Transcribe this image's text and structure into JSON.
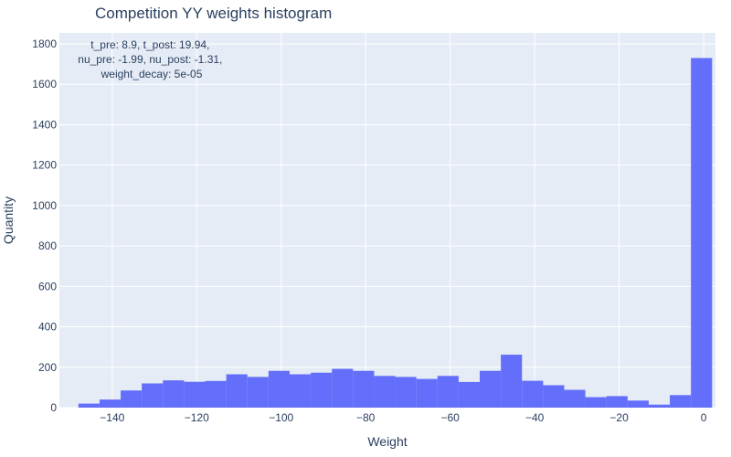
{
  "chart_data": {
    "type": "bar",
    "title": "Competition YY weights histogram",
    "xlabel": "Weight",
    "ylabel": "Quantity",
    "xlim": [
      -152.5,
      2.8
    ],
    "ylim": [
      0,
      1800
    ],
    "bar_color": "#636efa",
    "plot_bg": "#e5ecf6",
    "grid": true,
    "x_ticks": [
      -140,
      -120,
      -100,
      -80,
      -60,
      -40,
      -20,
      0
    ],
    "x_tick_labels": [
      "−140",
      "−120",
      "−100",
      "−80",
      "−60",
      "−40",
      "−20",
      "0"
    ],
    "y_ticks": [
      0,
      200,
      400,
      600,
      800,
      1000,
      1200,
      1400,
      1600,
      1800
    ],
    "y_tick_labels": [
      "0",
      "200",
      "400",
      "600",
      "800",
      "1000",
      "1200",
      "1400",
      "1600",
      "1800"
    ],
    "bin_width": 5,
    "bins": [
      {
        "x0": -148,
        "value": 20
      },
      {
        "x0": -143,
        "value": 40
      },
      {
        "x0": -138,
        "value": 85
      },
      {
        "x0": -133,
        "value": 120
      },
      {
        "x0": -128,
        "value": 135
      },
      {
        "x0": -123,
        "value": 128
      },
      {
        "x0": -118,
        "value": 132
      },
      {
        "x0": -113,
        "value": 165
      },
      {
        "x0": -108,
        "value": 152
      },
      {
        "x0": -103,
        "value": 182
      },
      {
        "x0": -98,
        "value": 165
      },
      {
        "x0": -93,
        "value": 173
      },
      {
        "x0": -88,
        "value": 192
      },
      {
        "x0": -83,
        "value": 182
      },
      {
        "x0": -78,
        "value": 157
      },
      {
        "x0": -73,
        "value": 152
      },
      {
        "x0": -68,
        "value": 142
      },
      {
        "x0": -63,
        "value": 157
      },
      {
        "x0": -58,
        "value": 127
      },
      {
        "x0": -53,
        "value": 182
      },
      {
        "x0": -48,
        "value": 262
      },
      {
        "x0": -43,
        "value": 133
      },
      {
        "x0": -38,
        "value": 111
      },
      {
        "x0": -33,
        "value": 88
      },
      {
        "x0": -28,
        "value": 52
      },
      {
        "x0": -23,
        "value": 57
      },
      {
        "x0": -18,
        "value": 35
      },
      {
        "x0": -13,
        "value": 15
      },
      {
        "x0": -8,
        "value": 62
      },
      {
        "x0": -3,
        "value": 1730
      }
    ],
    "annotation_lines": [
      "t_pre: 8.9, t_post: 19.94,",
      "nu_pre: -1.99, nu_post: -1.31,",
      "weight_decay: 5e-05"
    ]
  }
}
